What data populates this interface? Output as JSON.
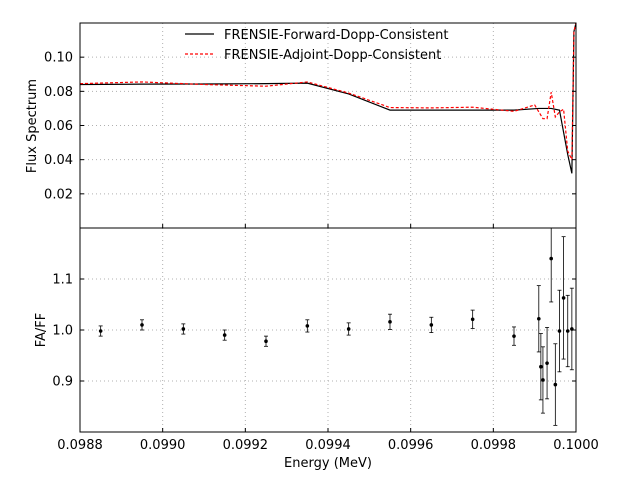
{
  "chart_data": [
    {
      "type": "line",
      "panel": "top",
      "xlabel": "",
      "ylabel": "Flux Spectrum",
      "xlim": [
        0.0988,
        0.1
      ],
      "ylim": [
        0.0,
        0.12
      ],
      "yticks": [
        0.02,
        0.04,
        0.06,
        0.08,
        0.1
      ],
      "ytick_labels": [
        "0.02",
        "0.04",
        "0.06",
        "0.08",
        "0.10"
      ],
      "grid": true,
      "legend_position": "top-center",
      "series": [
        {
          "name": "FRENSIE-Forward-Dopp-Consistent",
          "color": "#000000",
          "style": "solid",
          "x": [
            0.0988,
            0.09895,
            0.0991,
            0.09925,
            0.09935,
            0.09945,
            0.09955,
            0.09965,
            0.09975,
            0.09985,
            0.09991,
            0.09994,
            0.09996,
            0.09998,
            0.09999,
            0.099995,
            0.1
          ],
          "y": [
            0.084,
            0.0842,
            0.0843,
            0.0845,
            0.0848,
            0.0785,
            0.069,
            0.069,
            0.069,
            0.069,
            0.07,
            0.07,
            0.069,
            0.043,
            0.032,
            0.115,
            0.12
          ]
        },
        {
          "name": "FRENSIE-Adjoint-Dopp-Consistent",
          "color": "#ff0000",
          "style": "dashed",
          "x": [
            0.0988,
            0.09895,
            0.0991,
            0.09925,
            0.09935,
            0.09945,
            0.09955,
            0.09965,
            0.09975,
            0.09985,
            0.0999,
            0.09992,
            0.09993,
            0.09994,
            0.09995,
            0.09996,
            0.09997,
            0.09998,
            0.09999,
            0.099995,
            0.1
          ],
          "y": [
            0.0845,
            0.0855,
            0.084,
            0.083,
            0.0855,
            0.079,
            0.0705,
            0.0703,
            0.0707,
            0.0683,
            0.072,
            0.064,
            0.064,
            0.0795,
            0.065,
            0.068,
            0.0695,
            0.045,
            0.04,
            0.115,
            0.12
          ]
        }
      ]
    },
    {
      "type": "scatter",
      "panel": "bottom",
      "xlabel": "Energy (MeV)",
      "ylabel": "FA/FF",
      "xlim": [
        0.0988,
        0.1
      ],
      "ylim": [
        0.8,
        1.2
      ],
      "xticks": [
        0.0988,
        0.099,
        0.0992,
        0.0994,
        0.0996,
        0.0998,
        0.1
      ],
      "xtick_labels": [
        "0.0988",
        "0.0990",
        "0.0992",
        "0.0994",
        "0.0996",
        "0.0998",
        "0.1000"
      ],
      "yticks": [
        0.9,
        1.0,
        1.1
      ],
      "ytick_labels": [
        "0.9",
        "1.0",
        "1.1"
      ],
      "grid": true,
      "points": [
        {
          "x": 0.09885,
          "y": 0.998,
          "err": 0.01
        },
        {
          "x": 0.09895,
          "y": 1.01,
          "err": 0.01
        },
        {
          "x": 0.09905,
          "y": 1.002,
          "err": 0.01
        },
        {
          "x": 0.09915,
          "y": 0.99,
          "err": 0.01
        },
        {
          "x": 0.09925,
          "y": 0.978,
          "err": 0.01
        },
        {
          "x": 0.09935,
          "y": 1.008,
          "err": 0.012
        },
        {
          "x": 0.09945,
          "y": 1.002,
          "err": 0.012
        },
        {
          "x": 0.09955,
          "y": 1.016,
          "err": 0.015
        },
        {
          "x": 0.09965,
          "y": 1.01,
          "err": 0.015
        },
        {
          "x": 0.09975,
          "y": 1.021,
          "err": 0.018
        },
        {
          "x": 0.09985,
          "y": 0.988,
          "err": 0.018
        },
        {
          "x": 0.09991,
          "y": 1.022,
          "err": 0.065
        },
        {
          "x": 0.099915,
          "y": 0.928,
          "err": 0.065
        },
        {
          "x": 0.09992,
          "y": 0.902,
          "err": 0.065
        },
        {
          "x": 0.09993,
          "y": 0.935,
          "err": 0.07
        },
        {
          "x": 0.09994,
          "y": 1.14,
          "err": 0.085
        },
        {
          "x": 0.09995,
          "y": 0.893,
          "err": 0.08
        },
        {
          "x": 0.09996,
          "y": 0.998,
          "err": 0.08
        },
        {
          "x": 0.09997,
          "y": 1.063,
          "err": 0.12
        },
        {
          "x": 0.09998,
          "y": 0.998,
          "err": 0.07
        },
        {
          "x": 0.09999,
          "y": 1.002,
          "err": 0.08
        }
      ]
    }
  ]
}
